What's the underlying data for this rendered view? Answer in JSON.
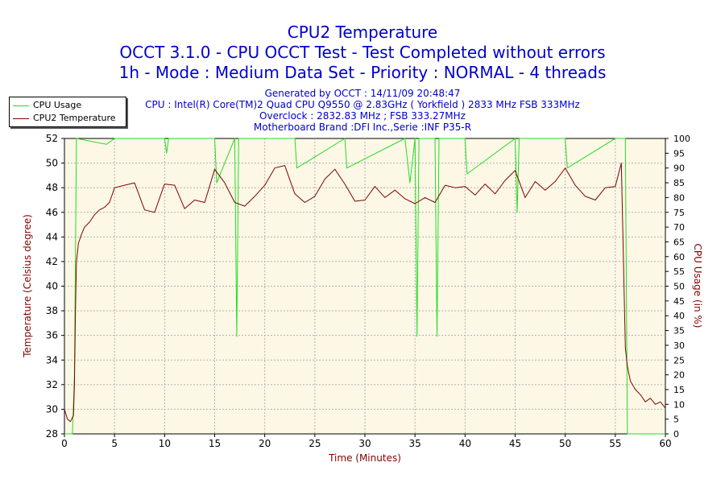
{
  "chart_data": {
    "type": "line",
    "title_lines": [
      "CPU2 Temperature",
      "OCCT 3.1.0 - CPU OCCT Test - Test Completed without errors",
      "1h - Mode : Medium Data Set - Priority : NORMAL - 4 threads"
    ],
    "info_lines": [
      "Generated by OCCT : 14/11/09 20:48:47",
      "CPU : Intel(R) Core(TM)2 Quad CPU Q9550 @ 2.83GHz ( Yorkfield ) 2833 MHz FSB 333MHz",
      "Overclock : 2832.83 MHz ; FSB 333.27MHz",
      "Motherboard Brand :DFI Inc.,Serie :INF P35-R"
    ],
    "xlabel": "Time (Minutes)",
    "ylabel_left": "Temperature (Celsius degree)",
    "ylabel_right": "CPU Usage (in %)",
    "xlim": [
      0,
      60
    ],
    "ylim_left": [
      28,
      52
    ],
    "ylim_right": [
      0,
      100
    ],
    "xticks": [
      "0",
      "5",
      "10",
      "15",
      "20",
      "25",
      "30",
      "35",
      "40",
      "45",
      "50",
      "55",
      "60"
    ],
    "yticks_left": [
      "28",
      "30",
      "32",
      "34",
      "36",
      "38",
      "40",
      "42",
      "44",
      "46",
      "48",
      "50",
      "52"
    ],
    "yticks_right": [
      "0",
      "5",
      "10",
      "15",
      "20",
      "25",
      "30",
      "35",
      "40",
      "45",
      "50",
      "55",
      "60",
      "65",
      "70",
      "75",
      "80",
      "85",
      "90",
      "95",
      "100"
    ],
    "grid": true,
    "legend_position": "top-left",
    "colors": {
      "plot_bg": "#fdf8e6",
      "grid": "#b0b0b0",
      "usage": "#22dd22",
      "temp": "#800000",
      "title": "#0000cc",
      "axis_label": "#800000"
    },
    "series": [
      {
        "name": "CPU Usage",
        "axis": "right",
        "x": [
          0,
          0.8,
          1.0,
          1.2,
          4.2,
          5.0,
          10.0,
          10.2,
          10.4,
          15.0,
          15.2,
          17.0,
          17.2,
          17.4,
          23.0,
          23.2,
          28.0,
          28.2,
          34.0,
          34.5,
          35.0,
          35.2,
          35.4,
          37.0,
          37.2,
          37.4,
          40.0,
          40.2,
          45.0,
          45.2,
          45.4,
          50.0,
          50.2,
          55.0,
          56.0,
          56.2,
          60.0
        ],
        "y": [
          0,
          0,
          20,
          100,
          98,
          100,
          100,
          95,
          100,
          100,
          85,
          100,
          33,
          100,
          100,
          90,
          100,
          90,
          100,
          85,
          100,
          33,
          100,
          100,
          33,
          100,
          100,
          88,
          100,
          75,
          100,
          100,
          90,
          100,
          100,
          0,
          0
        ]
      },
      {
        "name": "CPU2 Temperature",
        "axis": "left",
        "x": [
          0,
          0.3,
          0.6,
          0.9,
          1.0,
          1.1,
          1.2,
          1.4,
          1.7,
          2.0,
          2.5,
          3.0,
          3.5,
          4.0,
          4.5,
          5.0,
          6.0,
          7.0,
          8.0,
          9.0,
          10.0,
          11.0,
          12.0,
          13.0,
          14.0,
          15.0,
          16.0,
          17.0,
          18.0,
          19.0,
          20.0,
          21.0,
          22.0,
          23.0,
          24.0,
          25.0,
          26.0,
          27.0,
          28.0,
          29.0,
          30.0,
          31.0,
          32.0,
          33.0,
          34.0,
          35.0,
          36.0,
          37.0,
          38.0,
          39.0,
          40.0,
          41.0,
          42.0,
          43.0,
          44.0,
          45.0,
          46.0,
          47.0,
          48.0,
          49.0,
          50.0,
          51.0,
          52.0,
          53.0,
          54.0,
          55.0,
          55.6,
          56.0,
          56.2,
          56.5,
          57.0,
          57.5,
          58.0,
          58.5,
          59.0,
          59.5,
          60.0
        ],
        "y": [
          30,
          29.2,
          29.0,
          29.5,
          32,
          38,
          42,
          43.5,
          44.2,
          44.8,
          45.2,
          45.8,
          46.2,
          46.4,
          46.8,
          48,
          48.2,
          48.4,
          46.2,
          46.0,
          48.3,
          48.2,
          46.3,
          47.0,
          46.8,
          49.5,
          48.4,
          46.8,
          46.5,
          47.3,
          48.2,
          49.6,
          49.8,
          47.5,
          46.8,
          47.3,
          48.7,
          49.5,
          48.3,
          46.9,
          47.0,
          48.1,
          47.2,
          47.8,
          47.1,
          46.7,
          47.2,
          46.8,
          48.2,
          48.0,
          48.1,
          47.4,
          48.3,
          47.5,
          48.6,
          49.4,
          47.2,
          48.5,
          47.8,
          48.5,
          49.6,
          48.2,
          47.3,
          47.0,
          48.0,
          48.1,
          50.0,
          35.0,
          33.5,
          32.3,
          31.6,
          31.2,
          30.6,
          30.9,
          30.4,
          30.6,
          30.1
        ]
      }
    ]
  }
}
